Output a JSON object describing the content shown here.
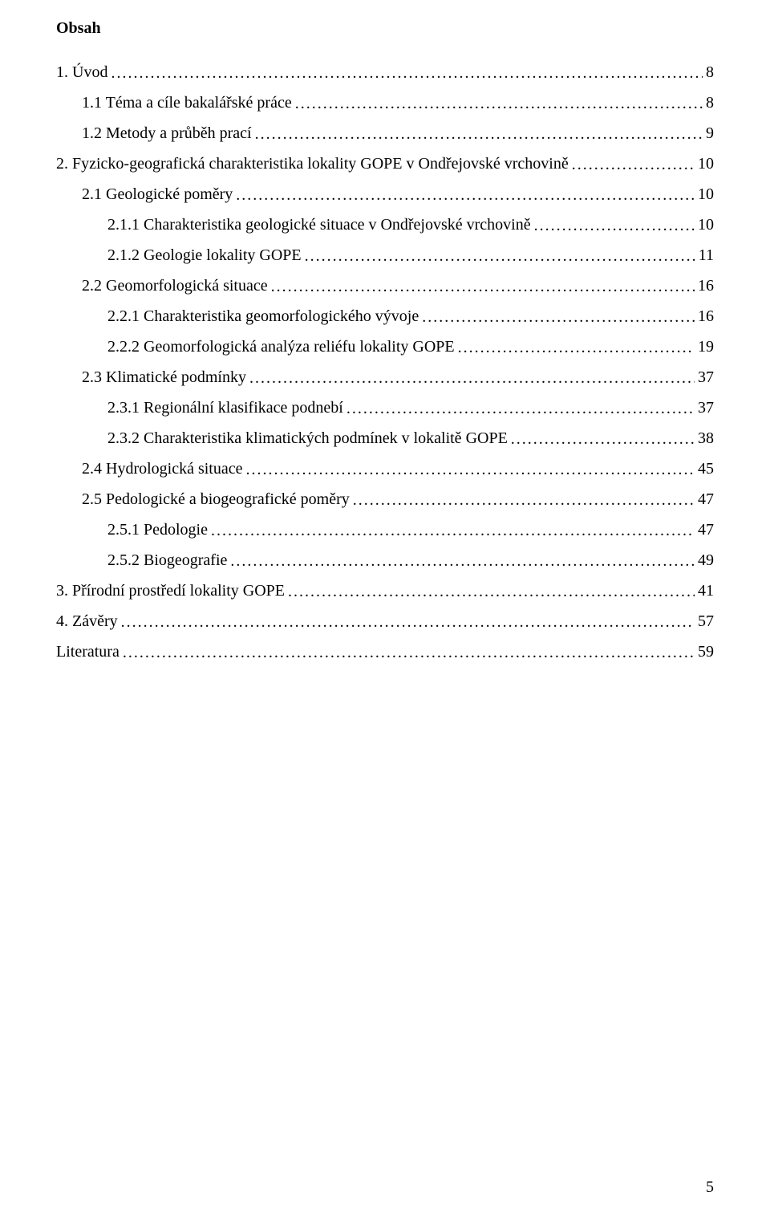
{
  "heading": "Obsah",
  "pageNumber": "5",
  "toc": [
    {
      "indent": 0,
      "label": "1. Úvod",
      "page": "8"
    },
    {
      "indent": 1,
      "label": "1.1 Téma a cíle bakalářské práce",
      "page": "8"
    },
    {
      "indent": 1,
      "label": "1.2 Metody a průběh prací",
      "page": "9"
    },
    {
      "indent": 0,
      "label": "2. Fyzicko-geografická charakteristika lokality GOPE v Ondřejovské vrchovině",
      "page": "10"
    },
    {
      "indent": 1,
      "label": "2.1 Geologické poměry",
      "page": "10"
    },
    {
      "indent": 2,
      "label": "2.1.1 Charakteristika geologické situace v Ondřejovské vrchovině",
      "page": "10"
    },
    {
      "indent": 2,
      "label": "2.1.2 Geologie lokality GOPE",
      "page": "11"
    },
    {
      "indent": 1,
      "label": "2.2 Geomorfologická situace",
      "page": "16"
    },
    {
      "indent": 2,
      "label": "2.2.1 Charakteristika geomorfologického vývoje",
      "page": "16"
    },
    {
      "indent": 2,
      "label": "2.2.2 Geomorfologická analýza reliéfu lokality GOPE",
      "page": "19"
    },
    {
      "indent": 1,
      "label": "2.3 Klimatické podmínky",
      "page": "37"
    },
    {
      "indent": 2,
      "label": "2.3.1 Regionální klasifikace podnebí",
      "page": "37"
    },
    {
      "indent": 2,
      "label": "2.3.2 Charakteristika klimatických podmínek v lokalitě GOPE",
      "page": "38"
    },
    {
      "indent": 1,
      "label": "2.4 Hydrologická situace",
      "page": "45"
    },
    {
      "indent": 1,
      "label": "2.5 Pedologické a biogeografické poměry",
      "page": "47"
    },
    {
      "indent": 2,
      "label": "2.5.1 Pedologie",
      "page": "47"
    },
    {
      "indent": 2,
      "label": "2.5.2 Biogeografie",
      "page": "49"
    },
    {
      "indent": 0,
      "label": "3. Přírodní prostředí lokality GOPE",
      "page": "41"
    },
    {
      "indent": 0,
      "label": "4. Závěry",
      "page": "57"
    },
    {
      "indent": 0,
      "label": "Literatura",
      "page": "59"
    }
  ]
}
